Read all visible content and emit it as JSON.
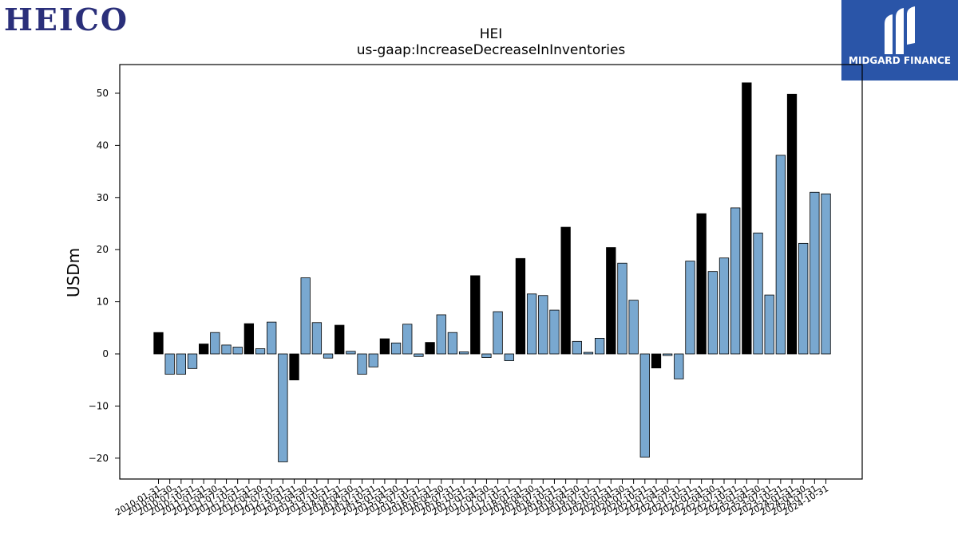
{
  "branding": {
    "left_logo_text": "HEICO",
    "right_logo_text": "MIDGARD FINANCE"
  },
  "chart_data": {
    "type": "bar",
    "title": "HEI",
    "subtitle": "us-gaap:IncreaseDecreaseInInventories",
    "xlabel": "",
    "ylabel": "USDm",
    "ylim": [
      -24,
      55.5
    ],
    "yticks": [
      -20,
      -10,
      0,
      10,
      20,
      30,
      40,
      50
    ],
    "ytick_labels": [
      "−20",
      "−10",
      "0",
      "10",
      "20",
      "30",
      "40",
      "50"
    ],
    "colors": {
      "fiscal_year_end": "#000000",
      "quarter": "#79a8d0"
    },
    "categories": [
      "2010-01-31",
      "2010-04-30",
      "2010-07-31",
      "2010-10-31",
      "2011-01-31",
      "2011-04-30",
      "2011-07-31",
      "2011-10-31",
      "2012-01-31",
      "2012-04-30",
      "2012-07-31",
      "2012-10-31",
      "2013-01-31",
      "2013-04-30",
      "2013-07-31",
      "2013-10-31",
      "2014-01-31",
      "2014-04-30",
      "2014-07-31",
      "2014-10-31",
      "2015-01-31",
      "2015-04-30",
      "2015-07-31",
      "2015-10-31",
      "2016-01-31",
      "2016-04-30",
      "2016-07-31",
      "2016-10-31",
      "2017-01-31",
      "2017-04-30",
      "2017-07-31",
      "2017-10-31",
      "2018-01-31",
      "2018-04-30",
      "2018-07-31",
      "2018-10-31",
      "2019-01-31",
      "2019-04-30",
      "2019-07-31",
      "2019-10-31",
      "2020-01-31",
      "2020-04-30",
      "2020-07-31",
      "2020-10-31",
      "2021-01-31",
      "2021-04-30",
      "2021-07-31",
      "2021-10-31",
      "2022-01-31",
      "2022-04-30",
      "2022-07-31",
      "2022-10-31",
      "2023-01-31",
      "2023-04-30",
      "2023-07-31",
      "2023-10-31",
      "2024-01-31",
      "2024-04-30",
      "2024-07-31",
      "2024-10-31"
    ],
    "values": [
      4.1,
      -3.9,
      -3.9,
      -2.8,
      1.9,
      4.1,
      1.7,
      1.3,
      5.8,
      1.0,
      6.1,
      -20.7,
      -5.0,
      14.6,
      6.0,
      -0.8,
      5.5,
      0.5,
      -3.9,
      -2.5,
      2.9,
      2.1,
      5.7,
      -0.5,
      2.2,
      7.5,
      4.1,
      0.4,
      15.0,
      -0.7,
      8.1,
      -1.3,
      18.3,
      11.5,
      11.2,
      8.4,
      24.3,
      2.4,
      0.3,
      3.0,
      20.4,
      17.4,
      10.3,
      -19.8,
      -2.7,
      -0.3,
      -4.8,
      17.8,
      26.9,
      15.8,
      18.4,
      28.0,
      52.0,
      23.2,
      11.3,
      38.1,
      49.8,
      21.2,
      31.0,
      30.7
    ],
    "fiscal_year_end": [
      true,
      false,
      false,
      false,
      true,
      false,
      false,
      false,
      true,
      false,
      false,
      false,
      true,
      false,
      false,
      false,
      true,
      false,
      false,
      false,
      true,
      false,
      false,
      false,
      true,
      false,
      false,
      false,
      true,
      false,
      false,
      false,
      true,
      false,
      false,
      false,
      true,
      false,
      false,
      false,
      true,
      false,
      false,
      false,
      true,
      false,
      false,
      false,
      true,
      false,
      false,
      false,
      true,
      false,
      false,
      false,
      true,
      false,
      false,
      false
    ],
    "grid": false,
    "legend": "none"
  }
}
